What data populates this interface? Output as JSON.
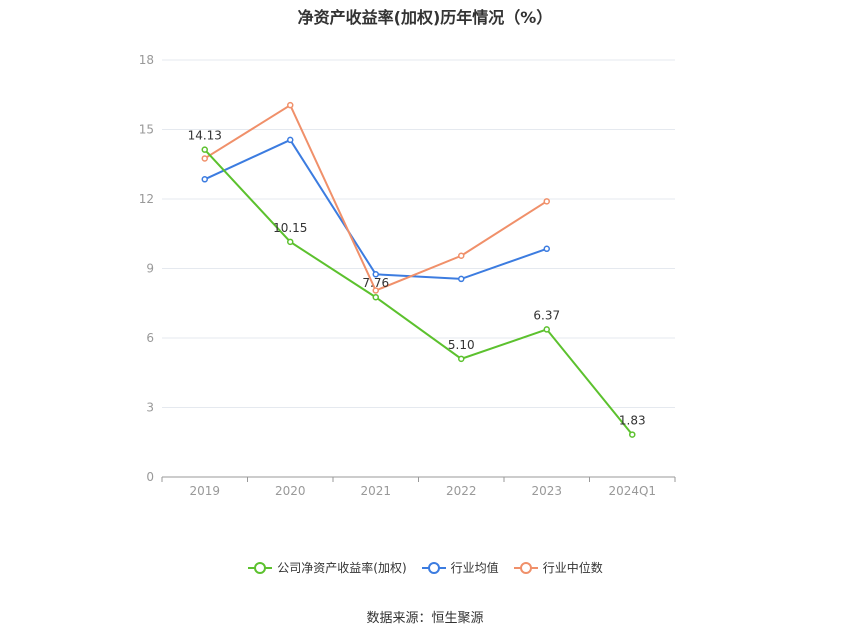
{
  "title": "净资产收益率(加权)历年情况（%）",
  "source": "数据来源：恒生聚源",
  "colors": {
    "company": "#5cc12e",
    "avg": "#3c7ce0",
    "median": "#f0906a",
    "grid": "#e5e9ef",
    "axis": "#999999",
    "text": "#333333"
  },
  "chart_data": {
    "type": "line",
    "categories": [
      "2019",
      "2020",
      "2021",
      "2022",
      "2023",
      "2024Q1"
    ],
    "ylim": [
      0,
      18
    ],
    "yticks": [
      0,
      3,
      6,
      9,
      12,
      15,
      18
    ],
    "grid": true,
    "legend_position": "bottom",
    "series": [
      {
        "name": "公司净资产收益率(加权)",
        "key": "company",
        "values": [
          14.13,
          10.15,
          7.76,
          5.1,
          6.37,
          1.83
        ],
        "labels": [
          "14.13",
          "10.15",
          "7.76",
          "5.10",
          "6.37",
          "1.83"
        ]
      },
      {
        "name": "行业均值",
        "key": "avg",
        "values": [
          12.85,
          14.55,
          8.75,
          8.55,
          9.85,
          null
        ]
      },
      {
        "name": "行业中位数",
        "key": "median",
        "values": [
          13.75,
          16.05,
          8.05,
          9.55,
          11.9,
          null
        ]
      }
    ]
  }
}
